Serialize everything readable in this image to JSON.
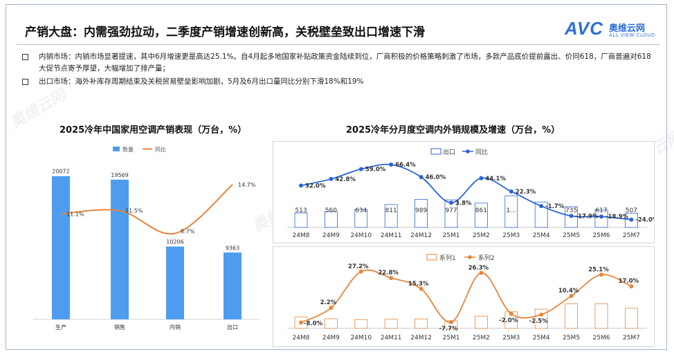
{
  "page": {
    "title": "产销大盘：内需强劲拉动，二季度产销增速创新高，关税壁垒致出口增速下滑",
    "logo_cn": "奥维云网",
    "logo_en": "ALL VIEW CLOUD",
    "logo_avc": "AVC",
    "bullets": [
      "内销市场：内销市场显著提速，其中6月增速更是高达25.1%。自4月起多地国家补贴政策资金陆续到位，厂商积极的价格策略刺激了市场，多款产品底价提前露出、价同618，厂商普遍对618大促节点寄予厚望，大幅增加了排产量；",
      "出口市场：海外补库存周期结束及关税贸易壁垒影响加剧，5月及6月出口量同比分别下滑18%和19%"
    ],
    "watermark": "奥维云网"
  },
  "colors": {
    "bar_blue": "#4d9cf0",
    "line_orange": "#e8853a",
    "export_line": "#2a63d8",
    "brand": "#2f6fd6"
  },
  "chart_data": [
    {
      "type": "bar",
      "title": "2025冷年中国家用空调产销表现（万台，%）",
      "categories": [
        "生产",
        "销售",
        "内销",
        "出口"
      ],
      "series": [
        {
          "name": "数量",
          "type": "bar",
          "values": [
            20072,
            19569,
            10206,
            9363
          ],
          "labels": [
            "20072",
            "19569",
            "10206",
            "9363"
          ]
        },
        {
          "name": "同比",
          "type": "line",
          "values": [
            11.1,
            11.5,
            8.7,
            14.7
          ],
          "labels": [
            "11.1%",
            "11.5%",
            "8.7%",
            "14.7%"
          ]
        }
      ],
      "legend": "top-center"
    },
    {
      "type": "bar",
      "title": "2025冷年分月度空调内外销规模及增速（万台，%）",
      "categories": [
        "24M8",
        "24M9",
        "24M10",
        "24M11",
        "24M12",
        "25M1",
        "25M2",
        "25M3",
        "25M4",
        "25M5",
        "25M6",
        "25M7"
      ],
      "series": [
        {
          "name": "出口",
          "type": "bar",
          "values": [
            513,
            560,
            634,
            811,
            989,
            977,
            861,
            1120,
            900,
            735,
            617,
            507
          ],
          "labels": [
            "513",
            "560",
            "634",
            "811",
            "989",
            "977",
            "861",
            "1…",
            "",
            "735",
            "617",
            "507"
          ]
        },
        {
          "name": "同比",
          "type": "line",
          "values": [
            32.0,
            42.8,
            59.0,
            66.4,
            46.0,
            3.8,
            44.1,
            22.3,
            -1.7,
            -17.9,
            -18.9,
            -24.0
          ],
          "labels": [
            "32.0%",
            "42.8%",
            "59.0%",
            "66.4%",
            "46.0%",
            "3.8%",
            "44.1%",
            "22.3%",
            "-1.7%",
            "-17.9%",
            "-18.9%",
            "-24.0%"
          ]
        }
      ],
      "legend": "top-center"
    },
    {
      "type": "bar",
      "categories": [
        "24M8",
        "24M9",
        "24M10",
        "24M11",
        "24M12",
        "25M1",
        "25M2",
        "25M3",
        "25M4",
        "25M5",
        "25M6",
        "25M7"
      ],
      "series": [
        {
          "name": "系列1",
          "type": "bar",
          "values": [
            260,
            220,
            200,
            210,
            215,
            170,
            280,
            380,
            440,
            560,
            560,
            460
          ]
        },
        {
          "name": "系列2",
          "type": "line",
          "values": [
            -8.0,
            2.2,
            27.2,
            22.8,
            15.3,
            -7.7,
            26.3,
            -2.0,
            -2.5,
            10.4,
            25.1,
            17.0
          ],
          "labels": [
            "-8.0%",
            "2.2%",
            "27.2%",
            "22.8%",
            "15.3%",
            "-7.7%",
            "26.3%",
            "-2.0%",
            "-2.5%",
            "10.4%",
            "25.1%",
            "17.0%"
          ]
        }
      ],
      "legend": "top-center"
    }
  ]
}
